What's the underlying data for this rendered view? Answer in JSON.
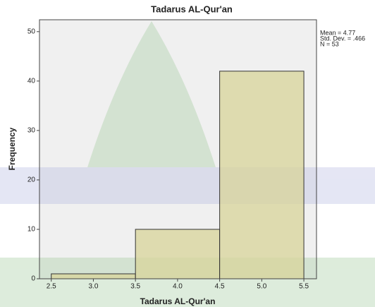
{
  "chart_data": {
    "type": "histogram",
    "title": "Tadarus AL-Qur'an",
    "x_label": "Tadarus AL-Qur'an",
    "y_label": "Frequency",
    "bins": [
      2.5,
      3.5,
      4.5,
      5.5
    ],
    "values": [
      1,
      10,
      42
    ],
    "color": "#d8d49a",
    "xlim": [
      2.36,
      5.65
    ],
    "ylim": [
      0,
      52.4
    ],
    "xticks": [
      2.5,
      {
        "value": 3,
        "label": "3.0"
      },
      3.5,
      {
        "value": 4,
        "label": "4.0"
      },
      4.5,
      {
        "value": 5,
        "label": "5.0"
      },
      5.5
    ],
    "yticks": [
      0,
      10,
      20,
      30,
      40,
      50
    ],
    "annotations": [
      "Mean = 4.77",
      "Std. Dev. = .466",
      "N = 53"
    ]
  }
}
